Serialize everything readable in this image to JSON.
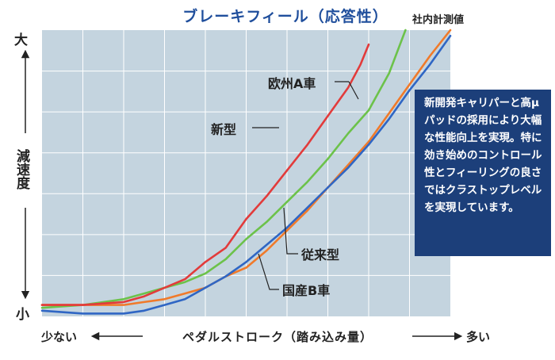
{
  "chart_data": {
    "type": "line",
    "title": "ブレーキフィール（応答性）",
    "note": "社内計測値",
    "ylabel": "減速度",
    "y_high_label": "大",
    "y_low_label": "小",
    "xlabel": "ペダルストローク（踏み込み量）",
    "x_low_label": "少ない",
    "x_high_label": "多い",
    "xlim": [
      0,
      100
    ],
    "ylim": [
      0,
      100
    ],
    "grid": true,
    "series": [
      {
        "name": "新型",
        "color": "#e23b3b",
        "x": [
          0,
          10,
          20,
          25,
          30,
          35,
          40,
          45,
          50,
          55,
          60,
          65,
          70,
          75,
          78,
          80
        ],
        "y": [
          4,
          4,
          5,
          7,
          10,
          13,
          19,
          24,
          34,
          42,
          51,
          60,
          70,
          80,
          88,
          95
        ]
      },
      {
        "name": "欧州A車",
        "color": "#6cc24a",
        "x": [
          0,
          10,
          20,
          25,
          30,
          35,
          40,
          45,
          50,
          55,
          60,
          65,
          70,
          75,
          80,
          85,
          89
        ],
        "y": [
          3,
          4,
          6,
          8,
          10,
          12,
          15,
          20,
          27,
          33,
          40,
          47,
          55,
          64,
          72,
          85,
          100
        ]
      },
      {
        "name": "従来型",
        "color": "#2f66c4",
        "x": [
          0,
          10,
          20,
          25,
          30,
          35,
          40,
          45,
          50,
          55,
          60,
          65,
          70,
          75,
          80,
          85,
          90,
          95,
          100
        ],
        "y": [
          2,
          1,
          1,
          2,
          4,
          6,
          10,
          14,
          19,
          25,
          31,
          38,
          45,
          52,
          60,
          69,
          79,
          88,
          98
        ]
      },
      {
        "name": "国産B車",
        "color": "#f07a2a",
        "x": [
          0,
          10,
          20,
          25,
          30,
          35,
          40,
          45,
          50,
          55,
          60,
          65,
          70,
          75,
          80,
          85,
          90,
          95,
          100
        ],
        "y": [
          4,
          4,
          4,
          5,
          6,
          8,
          10,
          14,
          17,
          23,
          30,
          37,
          45,
          53,
          61,
          71,
          81,
          91,
          100
        ]
      }
    ]
  },
  "callout": {
    "text": "新開発キャリパーと高μパッドの採用により大幅な性能向上を実現。特に効き始めのコントロール性とフィーリングの良さではクラストップレベルを実現しています。"
  }
}
